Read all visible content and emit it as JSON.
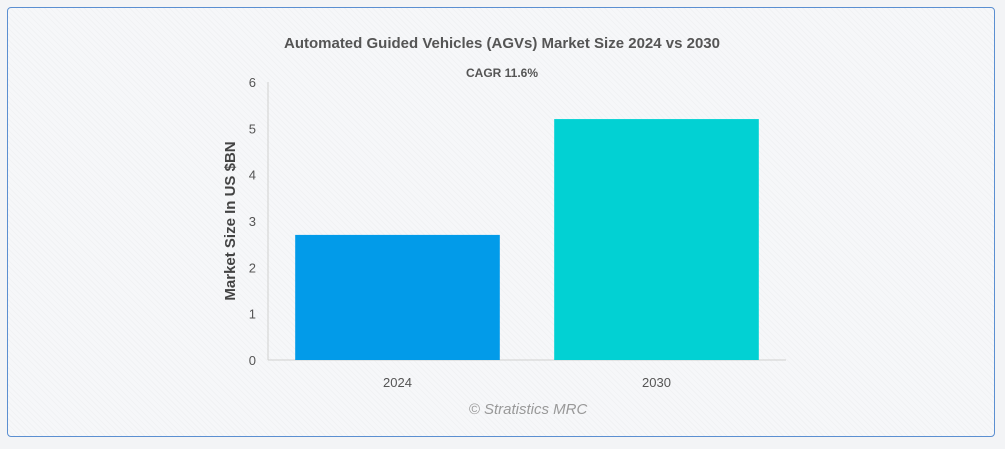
{
  "chart_data": {
    "type": "bar",
    "title": "Automated Guided Vehicles (AGVs) Market Size 2024 vs 2030",
    "subtitle": "CAGR 11.6%",
    "categories": [
      "2024",
      "2030"
    ],
    "values": [
      2.7,
      5.2
    ],
    "bar_colors": [
      "#029be9",
      "#02d1d3"
    ],
    "ylabel": "Market Size In US $BN",
    "xlabel": "",
    "ylim": [
      0,
      6
    ],
    "yticks": [
      "0",
      "1",
      "2",
      "3",
      "4",
      "5",
      "6"
    ],
    "grid": false,
    "legend": "none"
  },
  "credit": "© Stratistics MRC"
}
